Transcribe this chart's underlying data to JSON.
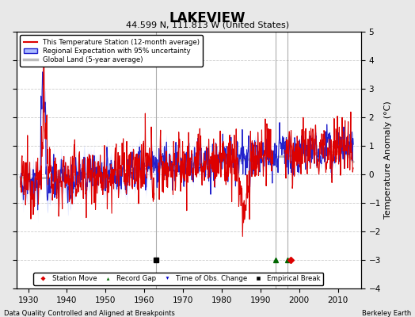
{
  "title": "LAKEVIEW",
  "subtitle": "44.599 N, 111.813 W (United States)",
  "ylabel": "Temperature Anomaly (°C)",
  "xlim": [
    1927,
    2016
  ],
  "ylim": [
    -4,
    5
  ],
  "yticks": [
    -4,
    -3,
    -2,
    -1,
    0,
    1,
    2,
    3,
    4,
    5
  ],
  "xticks": [
    1930,
    1940,
    1950,
    1960,
    1970,
    1980,
    1990,
    2000,
    2010
  ],
  "bg_color": "#e8e8e8",
  "plot_bg_color": "#ffffff",
  "grid_color": "#cccccc",
  "station_color": "#dd0000",
  "regional_color": "#2222cc",
  "regional_fill_color": "#aabbff",
  "global_color": "#bbbbbb",
  "vertical_line_color": "#999999",
  "vertical_lines": [
    1963,
    1994,
    1997
  ],
  "empirical_break_x": 1963,
  "record_gap_x1": 1994,
  "record_gap_x2": 1997,
  "station_move_x": 1997.8,
  "marker_y": -3.0,
  "footnote_left": "Data Quality Controlled and Aligned at Breakpoints",
  "footnote_right": "Berkeley Earth",
  "seed": 12345,
  "years_start": 1928,
  "years_end": 2014,
  "months_per_year": 12
}
